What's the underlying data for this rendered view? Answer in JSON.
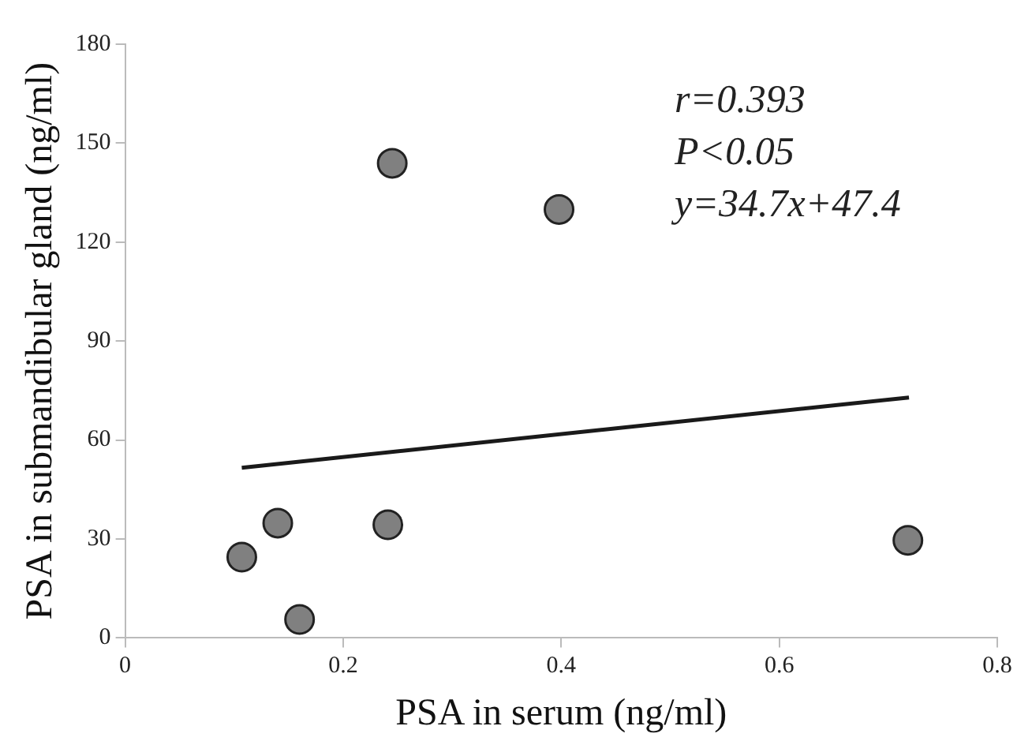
{
  "chart_data": {
    "type": "scatter",
    "xlabel": "PSA in serum (ng/ml)",
    "ylabel": "PSA in submandibular gland (ng/ml)",
    "xlim": [
      0,
      0.8
    ],
    "xticks": [
      0,
      0.2,
      0.4,
      0.6,
      0.8
    ],
    "ylim": [
      0,
      180
    ],
    "yticks": [
      0,
      30,
      60,
      90,
      120,
      150,
      180
    ],
    "grid": false,
    "marker": "circle",
    "series": [
      {
        "type": "scatter",
        "color": "#808080",
        "x": [
          0.107,
          0.14,
          0.16,
          0.241,
          0.245,
          0.398,
          0.718
        ],
        "values": [
          24.5,
          34.8,
          5.6,
          34.3,
          143.9,
          129.9,
          29.6
        ]
      },
      {
        "type": "line",
        "color": "#1a1a1a",
        "marker": "none",
        "x": [
          0.107,
          0.719
        ],
        "values": [
          51.6,
          72.9
        ]
      }
    ],
    "annotations": [
      "r=0.393",
      "P<0.05",
      "y=34.7x+47.4"
    ]
  }
}
